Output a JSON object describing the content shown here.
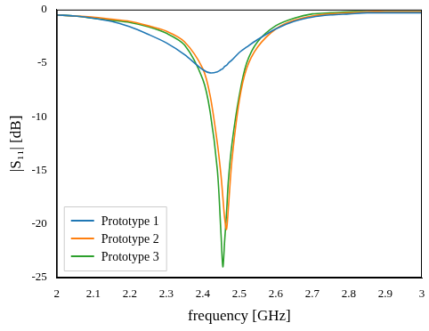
{
  "chart_data": {
    "type": "line",
    "x_label": "frequency [GHz]",
    "y_label": "|S₁₁| [dB]",
    "x": [
      2.0,
      2.05,
      2.1,
      2.15,
      2.2,
      2.25,
      2.3,
      2.35,
      2.4,
      2.42,
      2.44,
      2.45,
      2.455,
      2.46,
      2.465,
      2.47,
      2.48,
      2.5,
      2.52,
      2.55,
      2.6,
      2.65,
      2.7,
      2.75,
      2.8,
      2.85,
      2.9,
      2.95,
      3.0
    ],
    "series": [
      {
        "name": "Prototype 1",
        "color": "#1f77b4",
        "values": [
          -0.5,
          -0.6,
          -0.8,
          -1.1,
          -1.6,
          -2.3,
          -3.1,
          -4.2,
          -5.6,
          -5.9,
          -5.8,
          -5.6,
          -5.5,
          -5.3,
          -5.2,
          -5.0,
          -4.7,
          -4.0,
          -3.5,
          -2.8,
          -1.8,
          -1.1,
          -0.7,
          -0.5,
          -0.4,
          -0.3,
          -0.3,
          -0.3,
          -0.3
        ]
      },
      {
        "name": "Prototype 2",
        "color": "#ff7f0e",
        "values": [
          -0.5,
          -0.6,
          -0.7,
          -0.9,
          -1.1,
          -1.5,
          -2.0,
          -3.0,
          -5.5,
          -8.0,
          -12.5,
          -15.5,
          -17.5,
          -19.5,
          -20.5,
          -18.5,
          -14.0,
          -8.5,
          -5.5,
          -3.5,
          -1.8,
          -1.0,
          -0.6,
          -0.4,
          -0.3,
          -0.2,
          -0.2,
          -0.2,
          -0.2
        ]
      },
      {
        "name": "Prototype 3",
        "color": "#2ca02c",
        "values": [
          -0.5,
          -0.6,
          -0.8,
          -1.0,
          -1.2,
          -1.6,
          -2.2,
          -3.3,
          -6.5,
          -9.5,
          -15.0,
          -21.0,
          -24.0,
          -21.5,
          -19.0,
          -16.0,
          -12.5,
          -8.0,
          -5.0,
          -3.0,
          -1.5,
          -0.8,
          -0.4,
          -0.3,
          -0.2,
          -0.2,
          -0.2,
          -0.2,
          -0.2
        ]
      }
    ],
    "xlim": [
      2.0,
      3.0
    ],
    "xticks": [
      2,
      2.1,
      2.2,
      2.3,
      2.4,
      2.5,
      2.6,
      2.7,
      2.8,
      2.9,
      3
    ],
    "ylim": [
      -25,
      0
    ],
    "yticks": [
      -25,
      -20,
      -15,
      -10,
      -5,
      0
    ],
    "grid": false,
    "legend": "lower left"
  }
}
